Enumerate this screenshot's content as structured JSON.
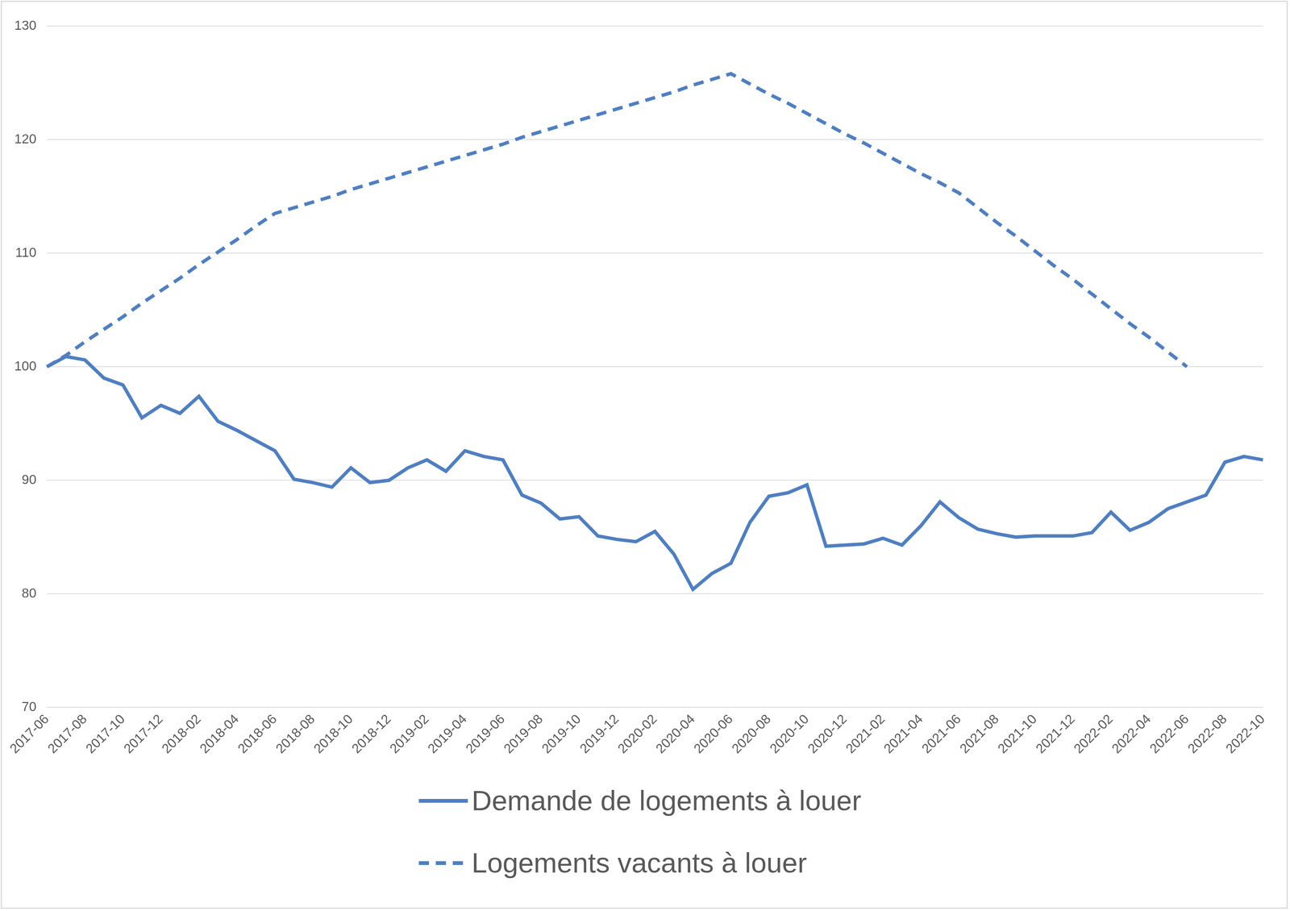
{
  "chart_data": {
    "type": "line",
    "categories": [
      "2017-06",
      null,
      "2017-08",
      null,
      "2017-10",
      null,
      "2017-12",
      null,
      "2018-02",
      null,
      "2018-04",
      null,
      "2018-06",
      null,
      "2018-08",
      null,
      "2018-10",
      null,
      "2018-12",
      null,
      "2019-02",
      null,
      "2019-04",
      null,
      "2019-06",
      null,
      "2019-08",
      null,
      "2019-10",
      null,
      "2019-12",
      null,
      "2020-02",
      null,
      "2020-04",
      null,
      "2020-06",
      null,
      "2020-08",
      null,
      "2020-10",
      null,
      "2020-12",
      null,
      "2021-02",
      null,
      "2021-04",
      null,
      "2021-06",
      null,
      "2021-08",
      null,
      "2021-10",
      null,
      "2021-12",
      null,
      "2022-02",
      null,
      "2022-04",
      null,
      "2022-06",
      null,
      "2022-08",
      null,
      "2022-10"
    ],
    "series": [
      {
        "name": "Demande de logements à louer",
        "color": "#4f7fc1",
        "line_style": "solid",
        "values": [
          100,
          100.9,
          100.6,
          99.0,
          98.4,
          95.5,
          96.6,
          95.9,
          97.4,
          95.2,
          94.4,
          93.5,
          92.6,
          90.1,
          89.8,
          89.4,
          91.1,
          89.8,
          90.0,
          91.1,
          91.8,
          90.8,
          92.6,
          92.1,
          91.8,
          88.7,
          88.0,
          86.6,
          86.8,
          85.1,
          84.8,
          84.6,
          85.5,
          83.5,
          80.4,
          81.8,
          82.7,
          86.3,
          88.6,
          88.9,
          89.6,
          84.2,
          84.3,
          84.4,
          84.9,
          84.3,
          86.0,
          88.1,
          86.7,
          85.7,
          85.3,
          85.0,
          85.1,
          85.1,
          85.1,
          85.4,
          87.2,
          85.6,
          86.3,
          87.5,
          88.1,
          88.7,
          91.6,
          92.1,
          91.8
        ]
      },
      {
        "name": "Logements vacants à louer",
        "color": "#4f7fc1",
        "line_style": "dashed",
        "values": [
          100,
          101.0,
          102.2,
          103.3,
          104.4,
          105.6,
          106.7,
          107.8,
          109.0,
          110.1,
          111.2,
          112.4,
          113.5,
          114.0,
          114.5,
          115.0,
          115.6,
          116.1,
          116.6,
          117.1,
          117.6,
          118.1,
          118.6,
          119.1,
          119.6,
          120.2,
          120.7,
          121.2,
          121.7,
          122.2,
          122.7,
          123.2,
          123.7,
          124.2,
          124.8,
          125.3,
          125.8,
          124.9,
          124.0,
          123.2,
          122.3,
          121.4,
          120.5,
          119.7,
          118.8,
          117.9,
          117.0,
          116.2,
          115.3,
          114.0,
          112.7,
          111.5,
          110.2,
          108.9,
          107.7,
          106.4,
          105.1,
          103.8,
          102.6,
          101.3,
          100.0,
          null,
          null,
          null,
          null
        ]
      }
    ],
    "ylim": [
      70,
      130
    ],
    "yticks": [
      70,
      80,
      90,
      100,
      110,
      120,
      130
    ],
    "grid": true,
    "legend": "bottom"
  }
}
